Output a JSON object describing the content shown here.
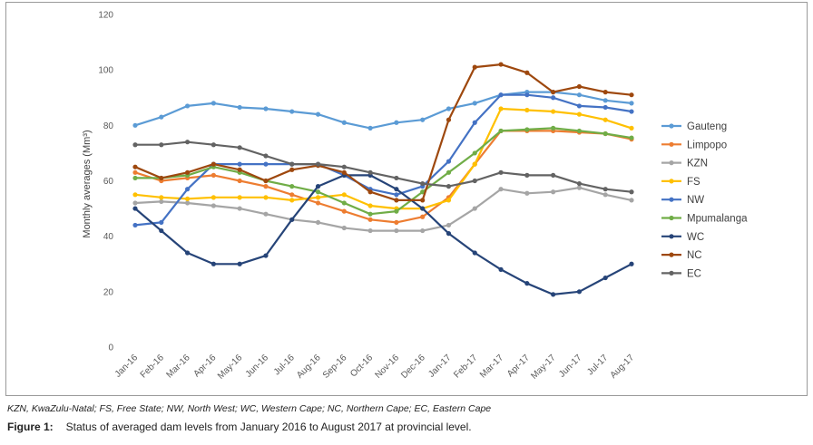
{
  "chart_data": {
    "type": "line",
    "ylabel": "Monthly averages (Mm³)",
    "ylim": [
      0,
      120
    ],
    "yticks": [
      0,
      20,
      40,
      60,
      80,
      100,
      120
    ],
    "categories": [
      "Jan-16",
      "Feb-16",
      "Mar-16",
      "Apr-16",
      "May-16",
      "Jun-16",
      "Jul-16",
      "Aug-16",
      "Sep-16",
      "Oct-16",
      "Nov-16",
      "Dec-16",
      "Jan-17",
      "Feb-17",
      "Mar-17",
      "Apr-17",
      "May-17",
      "Jun-17",
      "Jul-17",
      "Aug-17"
    ],
    "legend_position": "right",
    "grid": false,
    "series": [
      {
        "name": "Gauteng",
        "color": "#5b9bd5",
        "values": [
          80,
          83,
          87,
          88,
          86.5,
          86,
          85,
          84,
          81,
          79,
          81,
          82,
          86,
          88,
          91,
          92,
          92,
          91,
          89,
          88
        ]
      },
      {
        "name": "Limpopo",
        "color": "#ed7d31",
        "values": [
          63,
          60,
          61,
          62,
          60,
          58,
          55,
          52,
          49,
          46,
          45,
          47,
          54,
          66,
          78,
          78,
          78,
          77.5,
          77,
          75
        ]
      },
      {
        "name": "KZN",
        "color": "#a5a5a5",
        "values": [
          52,
          52.5,
          52,
          51,
          50,
          48,
          46,
          45,
          43,
          42,
          42,
          42,
          44,
          50,
          57,
          55.5,
          56,
          57.5,
          55,
          53
        ]
      },
      {
        "name": "FS",
        "color": "#ffc000",
        "values": [
          55,
          54,
          53.5,
          54,
          54,
          54,
          53,
          54,
          55,
          51,
          50,
          50,
          53,
          66,
          86,
          85.5,
          85,
          84,
          82,
          79
        ]
      },
      {
        "name": "NW",
        "color": "#4472c4",
        "values": [
          44,
          45,
          57,
          66,
          66,
          66,
          66,
          66,
          62,
          57,
          55,
          58,
          67,
          81,
          91,
          91,
          90,
          87,
          86.5,
          85
        ]
      },
      {
        "name": "Mpumalanga",
        "color": "#70ad47",
        "values": [
          61,
          61,
          62,
          65,
          63,
          60,
          58,
          56,
          52,
          48,
          49,
          56,
          63,
          70,
          78,
          78.5,
          79,
          78,
          77,
          75.5
        ]
      },
      {
        "name": "WC",
        "color": "#264478",
        "values": [
          50,
          42,
          34,
          30,
          30,
          33,
          46,
          58,
          62,
          62,
          57,
          50,
          41,
          34,
          28,
          23,
          19,
          20,
          25,
          30
        ]
      },
      {
        "name": "NC",
        "color": "#9e480e",
        "values": [
          65,
          61,
          63,
          66,
          64,
          60,
          64,
          65.5,
          63,
          56,
          53,
          53,
          82,
          101,
          102,
          99,
          92,
          94,
          92,
          91
        ]
      },
      {
        "name": "EC",
        "color": "#636363",
        "values": [
          73,
          73,
          74,
          73,
          72,
          69,
          66,
          66,
          65,
          63,
          61,
          59,
          58,
          60,
          63,
          62,
          62,
          59,
          57,
          56
        ]
      }
    ]
  },
  "notes": {
    "abbreviations": "KZN, KwaZulu-Natal; FS, Free State; NW, North West; WC, Western Cape; NC, Northern Cape; EC, Eastern Cape"
  },
  "caption": {
    "label": "Figure 1:",
    "text": "Status of averaged dam levels from January 2016 to August 2017 at provincial level."
  }
}
